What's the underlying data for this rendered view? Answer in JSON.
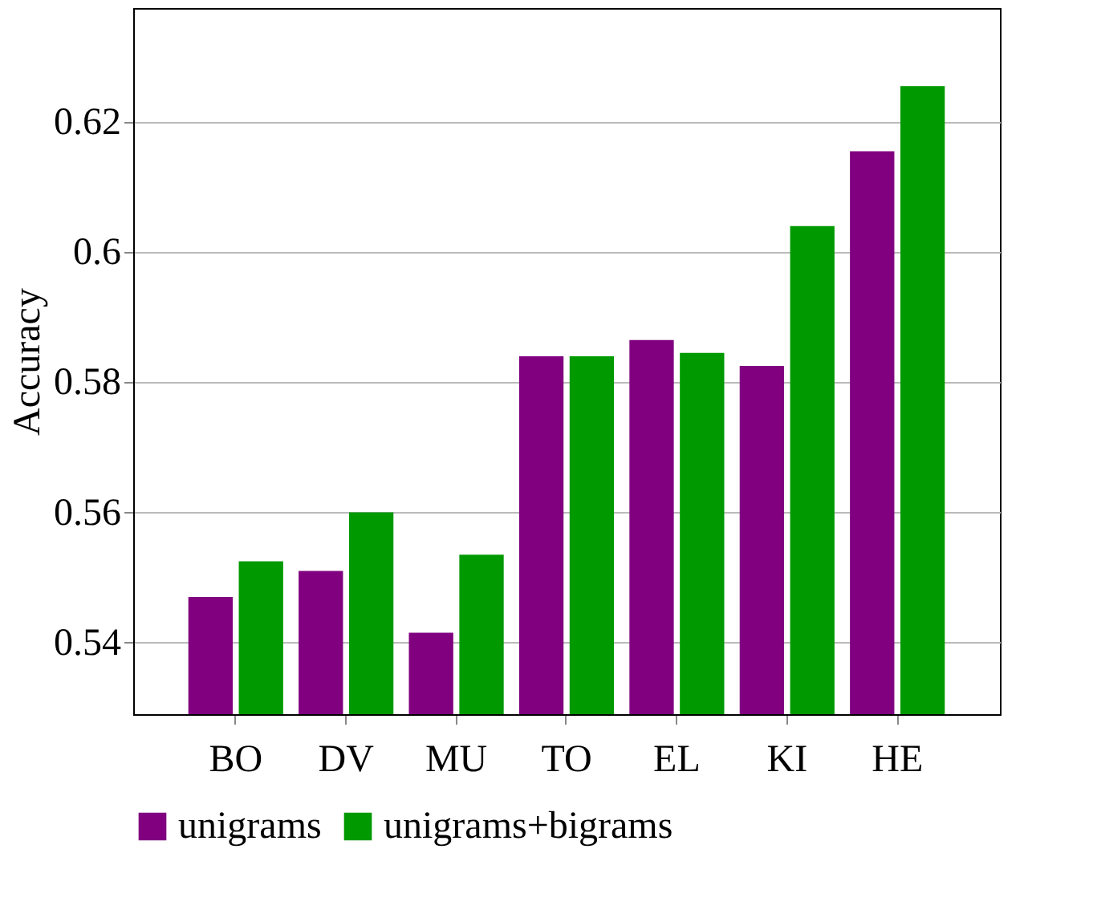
{
  "chart_data": {
    "type": "bar",
    "ylabel": "Accuracy",
    "categories": [
      "BO",
      "DV",
      "MU",
      "TO",
      "EL",
      "KI",
      "HE"
    ],
    "series": [
      {
        "name": "unigrams",
        "color": "#800080",
        "values": [
          0.547,
          0.551,
          0.5415,
          0.584,
          0.5865,
          0.5825,
          0.6155
        ]
      },
      {
        "name": "unigrams+bigrams",
        "color": "#009900",
        "values": [
          0.5525,
          0.56,
          0.5535,
          0.584,
          0.5845,
          0.604,
          0.6255
        ]
      }
    ],
    "ylim": [
      0.529,
      0.6375
    ],
    "yticks": [
      0.54,
      0.56,
      0.58,
      {
        "value": 0.6,
        "label": "0.6"
      },
      0.62
    ],
    "grid": "y",
    "legend": "bottom"
  }
}
